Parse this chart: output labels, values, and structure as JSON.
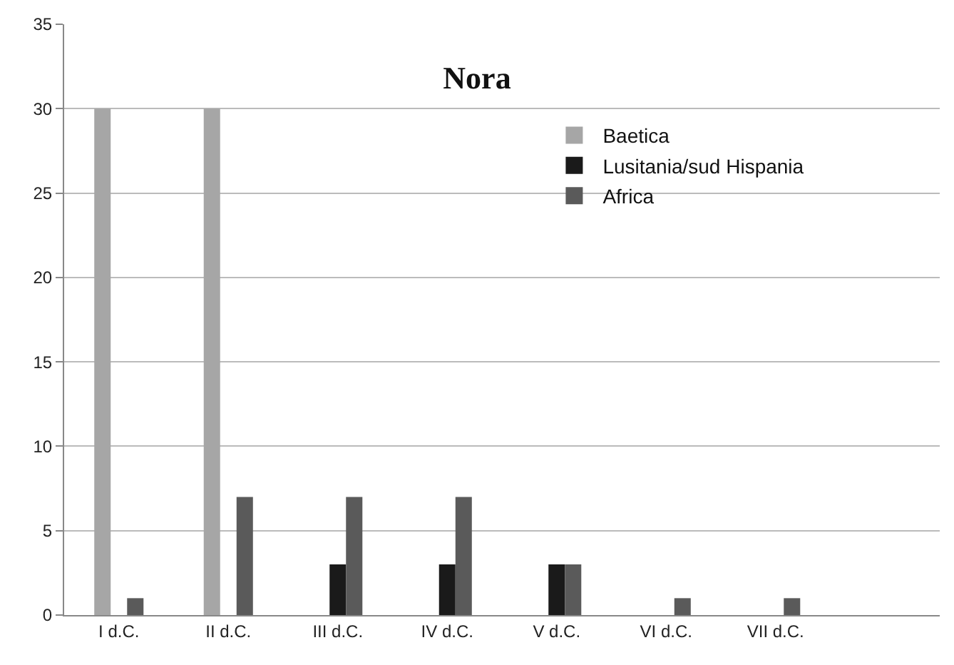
{
  "chart_data": {
    "type": "bar",
    "title": "Nora",
    "categories": [
      "I d.C.",
      "II d.C.",
      "III d.C.",
      "IV d.C.",
      "V d.C.",
      "VI d.C.",
      "VII d.C.",
      null
    ],
    "series": [
      {
        "name": "Baetica",
        "color": "#a6a6a6",
        "values": [
          30,
          30,
          0,
          0,
          0,
          0,
          0,
          null
        ]
      },
      {
        "name": "Lusitania/sud Hispania",
        "color": "#1a1a1a",
        "values": [
          0,
          0,
          3,
          3,
          3,
          0,
          0,
          null
        ]
      },
      {
        "name": "Africa",
        "color": "#5a5a5a",
        "values": [
          1,
          7,
          7,
          7,
          3,
          1,
          1,
          null
        ]
      }
    ],
    "ylim": [
      0,
      35
    ],
    "yticks": [
      0,
      5,
      10,
      15,
      20,
      25,
      30,
      35
    ],
    "grid": "y",
    "legend": "top right"
  }
}
